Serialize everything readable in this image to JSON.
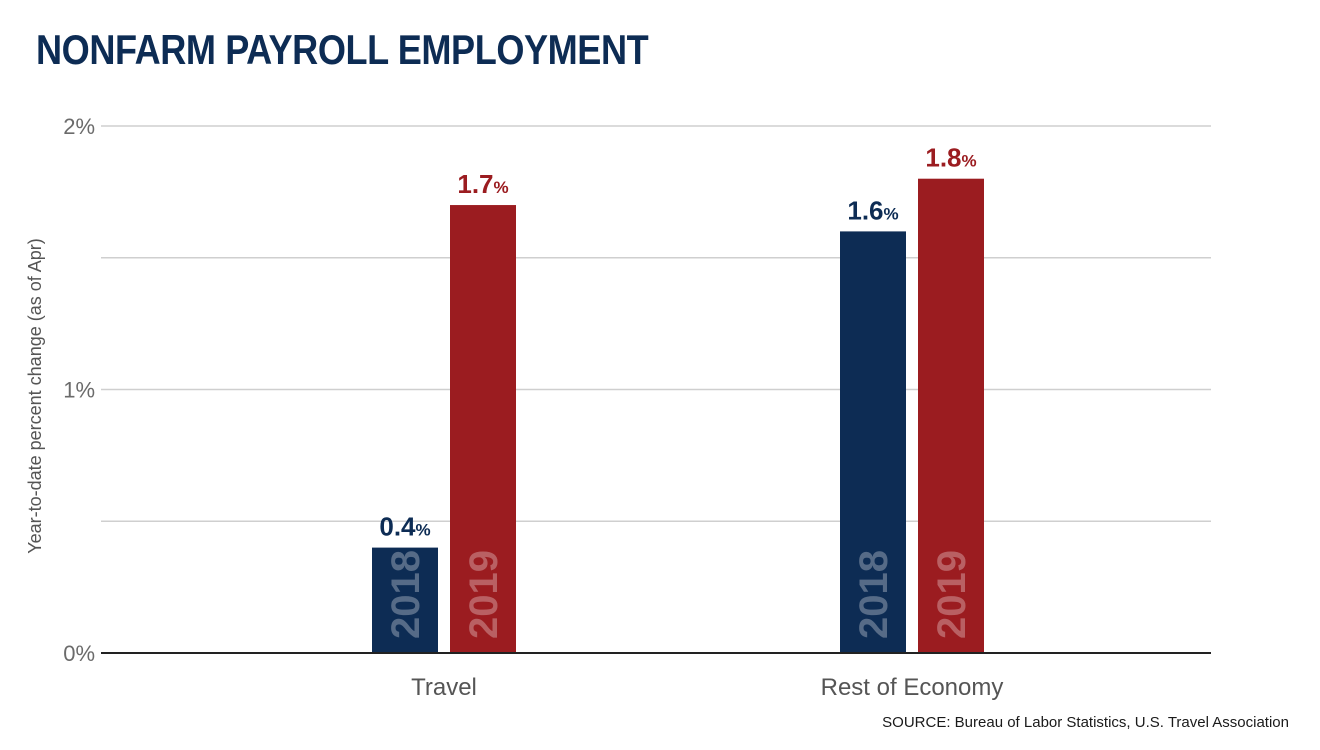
{
  "title": "NONFARM PAYROLL EMPLOYMENT",
  "source": "SOURCE: Bureau of Labor Statistics, U.S. Travel Association",
  "colors": {
    "title": "#0d2c54",
    "series_2018": "#0d2c54",
    "series_2019": "#9b1c20",
    "grid": "#cfcfcf",
    "axis": "#222222"
  },
  "chart_data": {
    "type": "bar",
    "title": "NONFARM PAYROLL EMPLOYMENT",
    "ylabel": "Year-to-date percent change (as of Apr)",
    "xlabel": "",
    "categories": [
      "Travel",
      "Rest of Economy"
    ],
    "series": [
      {
        "name": "2018",
        "values": [
          0.4,
          1.6
        ],
        "labels": [
          "0.4",
          "1.6"
        ]
      },
      {
        "name": "2019",
        "values": [
          1.7,
          1.8
        ],
        "labels": [
          "1.7",
          "1.8"
        ]
      }
    ],
    "value_suffix": "%",
    "ylim": [
      0,
      2
    ],
    "y_ticks": [
      0,
      1,
      2
    ],
    "y_tick_labels": [
      "0%",
      "1%",
      "2%"
    ],
    "grid_values": [
      0.5,
      1,
      1.5,
      2
    ],
    "grid": true,
    "legend": "none (series names printed inside bars)"
  }
}
